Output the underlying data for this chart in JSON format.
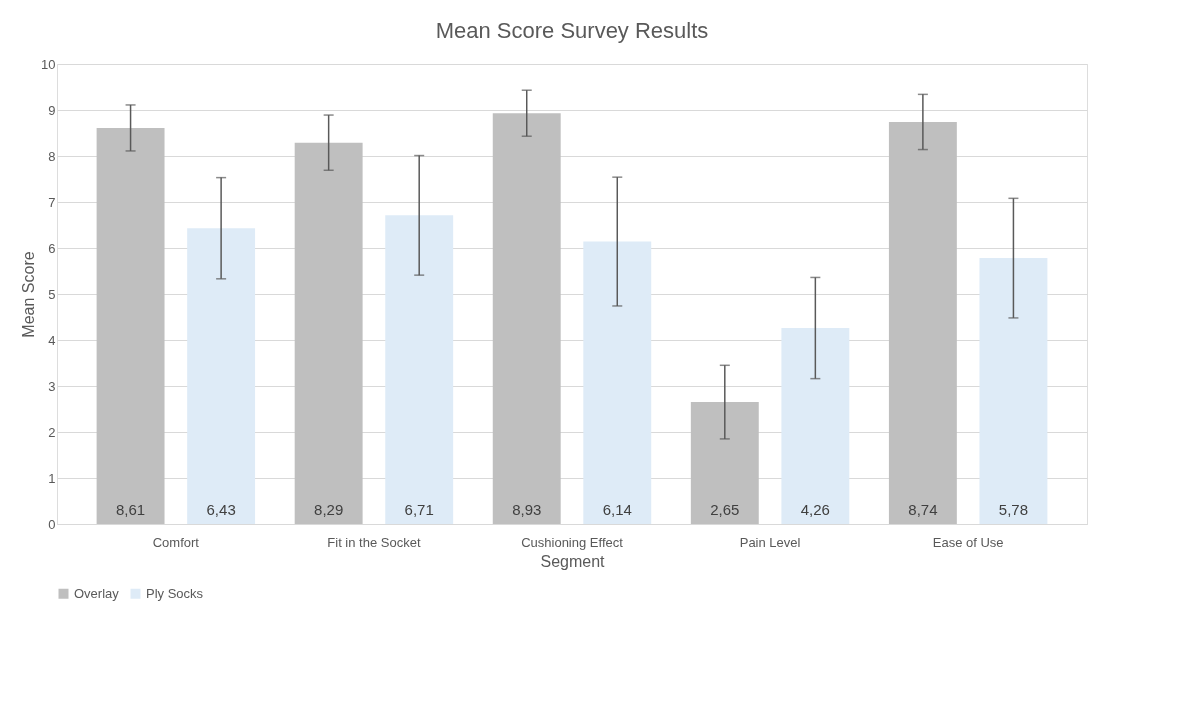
{
  "chart_data": {
    "type": "bar",
    "title": "Mean Score Survey Results",
    "xlabel": "Segment",
    "ylabel": "Mean Score",
    "categories": [
      "Comfort",
      "Fit in the Socket",
      "Cushioning Effect",
      "Pain Level",
      "Ease of Use"
    ],
    "series": [
      {
        "name": "Overlay",
        "color": "#bfbfbf",
        "values": [
          8.61,
          8.29,
          8.93,
          2.65,
          8.74
        ],
        "errors": [
          0.5,
          0.6,
          0.5,
          0.8,
          0.6
        ],
        "value_labels": [
          "8,61",
          "8,29",
          "8,93",
          "2,65",
          "8,74"
        ]
      },
      {
        "name": "Ply Socks",
        "color": "#deebf7",
        "values": [
          6.43,
          6.71,
          6.14,
          4.26,
          5.78
        ],
        "errors": [
          1.1,
          1.3,
          1.4,
          1.1,
          1.3
        ],
        "value_labels": [
          "6,43",
          "6,71",
          "6,14",
          "4,26",
          "5,78"
        ]
      }
    ],
    "ylim": [
      0,
      10
    ],
    "yticks": [
      0,
      1,
      2,
      3,
      4,
      5,
      6,
      7,
      8,
      9,
      10
    ],
    "grid": "y",
    "legend": "bottom"
  }
}
